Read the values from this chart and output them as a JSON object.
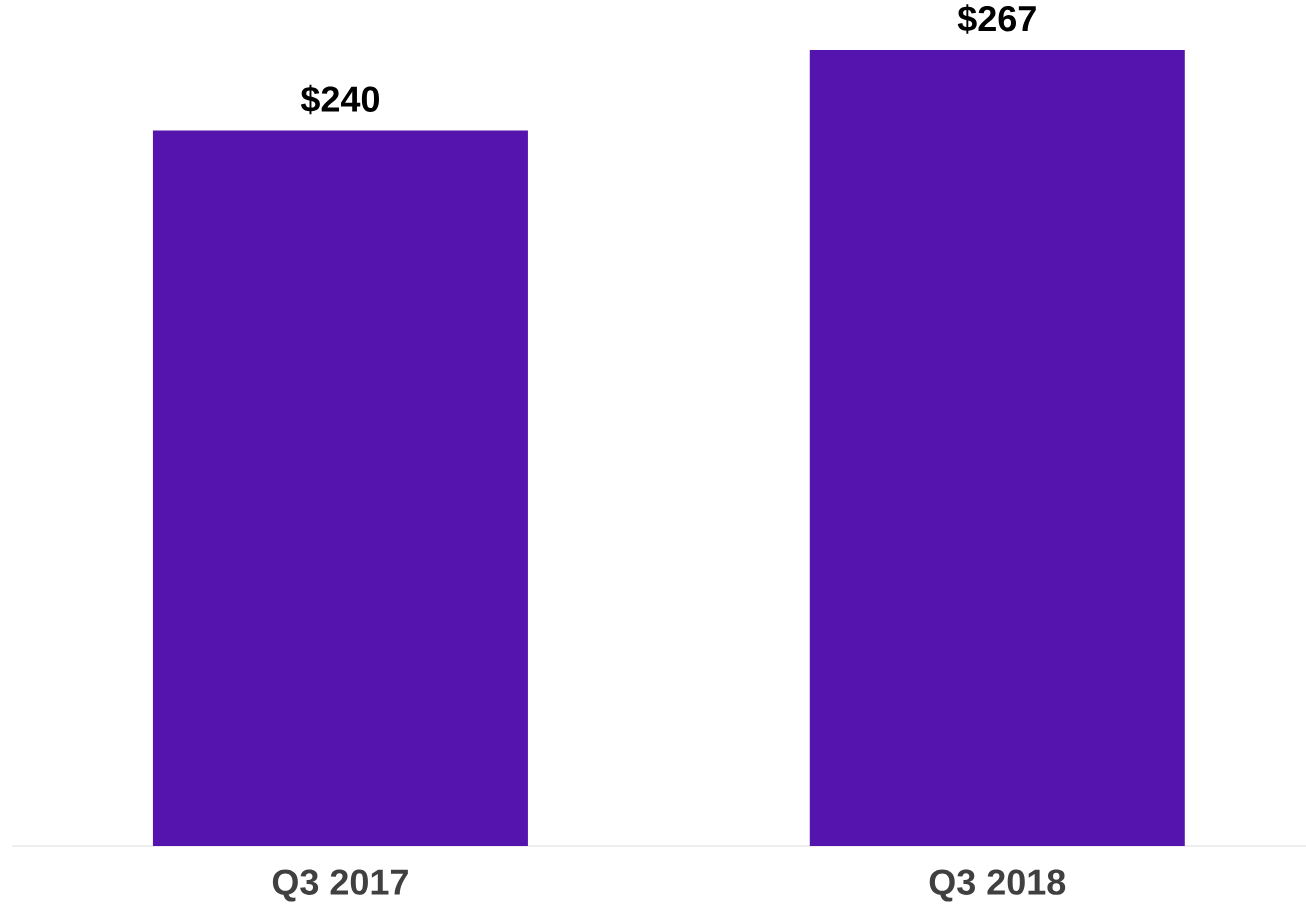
{
  "chart_data": {
    "type": "bar",
    "categories": [
      "Q3 2017",
      "Q3 2018"
    ],
    "values": [
      240,
      267
    ],
    "color": "#5514ad",
    "value_labels": [
      "$240",
      "$267"
    ]
  }
}
